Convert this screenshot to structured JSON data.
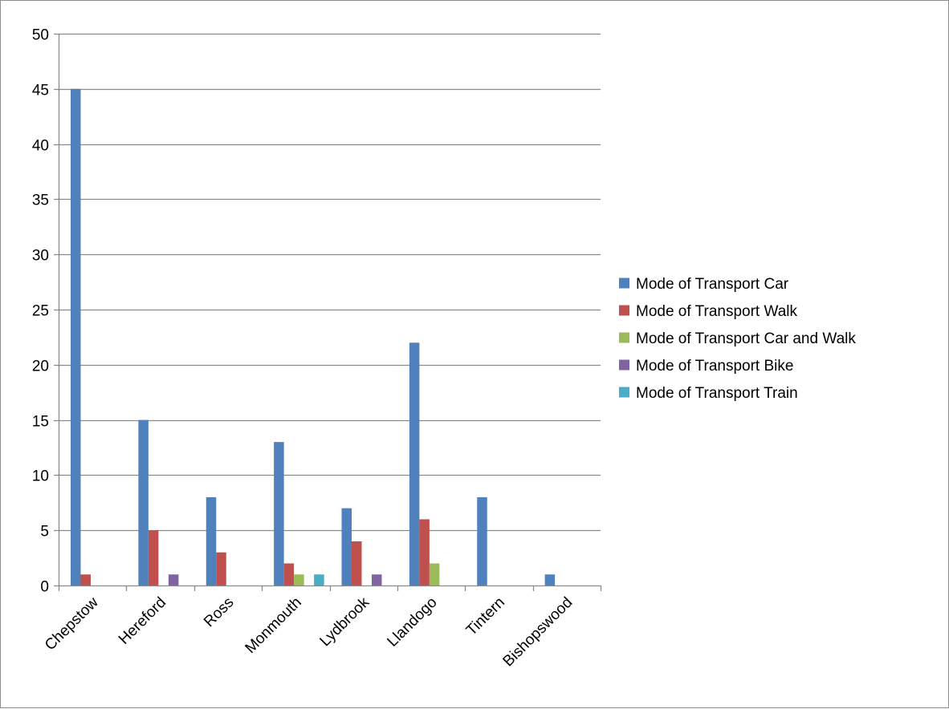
{
  "chart_data": {
    "type": "bar",
    "categories": [
      "Chepstow",
      "Hereford",
      "Ross",
      "Monmouth",
      "Lydbrook",
      "Llandogo",
      "Tintern",
      "Bishopswood"
    ],
    "series": [
      {
        "name": "Mode of Transport Car",
        "color": "#4f81bd",
        "values": [
          45,
          15,
          8,
          13,
          7,
          22,
          8,
          1
        ]
      },
      {
        "name": "Mode of Transport Walk",
        "color": "#c0504d",
        "values": [
          1,
          5,
          3,
          2,
          4,
          6,
          0,
          0
        ]
      },
      {
        "name": "Mode of Transport Car and Walk",
        "color": "#9bbb59",
        "values": [
          0,
          0,
          0,
          1,
          0,
          2,
          0,
          0
        ]
      },
      {
        "name": "Mode of Transport Bike",
        "color": "#8064a2",
        "values": [
          0,
          1,
          0,
          0,
          1,
          0,
          0,
          0
        ]
      },
      {
        "name": "Mode of Transport Train",
        "color": "#4bacc6",
        "values": [
          0,
          0,
          0,
          1,
          0,
          0,
          0,
          0
        ]
      }
    ],
    "title": "",
    "xlabel": "",
    "ylabel": "",
    "ylim": [
      0,
      50
    ],
    "yticks": [
      0,
      5,
      10,
      15,
      20,
      25,
      30,
      35,
      40,
      45,
      50
    ],
    "grid": true,
    "legend": "right"
  }
}
